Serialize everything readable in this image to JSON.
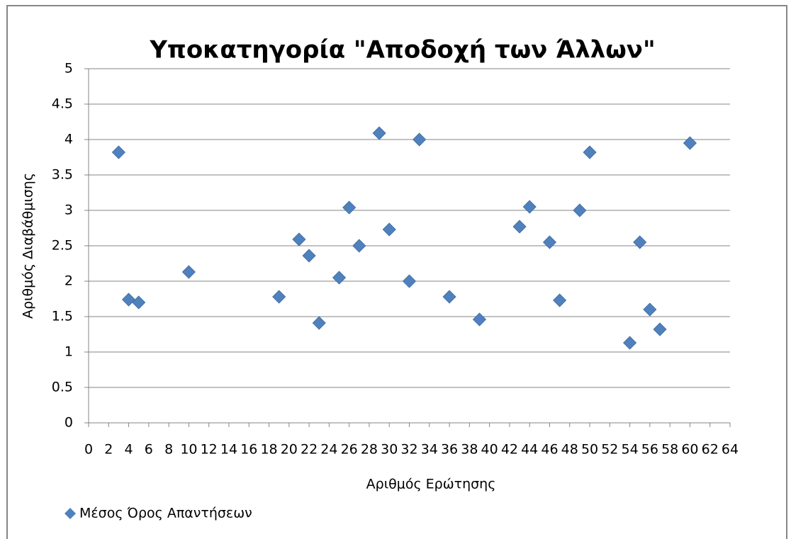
{
  "chart_data": {
    "type": "scatter",
    "title": "Υποκατηγορία \"Αποδοχή των Άλλων\"",
    "x_label": "Αριθμός Ερώτησης",
    "y_label": "Αριθμός Διαβάθμισης",
    "series": [
      {
        "name": "Μέσος Όρος Απαντήσεων",
        "color": "#4f81bd",
        "x": [
          3,
          4,
          5,
          10,
          19,
          21,
          22,
          23,
          25,
          26,
          27,
          29,
          30,
          32,
          33,
          36,
          39,
          43,
          44,
          46,
          47,
          49,
          50,
          54,
          55,
          56,
          57,
          60
        ],
        "values": [
          3.82,
          1.74,
          1.7,
          2.13,
          1.78,
          2.59,
          2.36,
          1.41,
          2.05,
          3.04,
          2.5,
          4.09,
          2.73,
          2.0,
          4.0,
          1.78,
          1.46,
          2.77,
          3.05,
          2.55,
          1.73,
          3.0,
          3.82,
          1.13,
          2.55,
          1.6,
          1.32,
          3.95
        ]
      }
    ],
    "xlim": [
      0,
      64
    ],
    "xticks": [
      0,
      2,
      4,
      6,
      8,
      10,
      12,
      14,
      16,
      18,
      20,
      22,
      24,
      26,
      28,
      30,
      32,
      34,
      36,
      38,
      40,
      42,
      44,
      46,
      48,
      50,
      52,
      54,
      56,
      58,
      60,
      62,
      64
    ],
    "ylim": [
      0,
      5
    ],
    "yticks": [
      0,
      0.5,
      1,
      1.5,
      2,
      2.5,
      3,
      3.5,
      4,
      4.5,
      5
    ],
    "grid": true,
    "legend": "bottom-left"
  }
}
